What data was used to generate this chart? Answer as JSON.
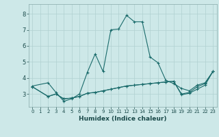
{
  "title": "",
  "xlabel": "Humidex (Indice chaleur)",
  "xlim": [
    -0.5,
    23.5
  ],
  "ylim": [
    2.2,
    8.6
  ],
  "xticks": [
    0,
    1,
    2,
    3,
    4,
    5,
    6,
    7,
    8,
    9,
    10,
    11,
    12,
    13,
    14,
    15,
    16,
    17,
    18,
    19,
    20,
    21,
    22,
    23
  ],
  "yticks": [
    3,
    4,
    5,
    6,
    7,
    8
  ],
  "bg": "#cde8e8",
  "grid_color": "#b0d0d0",
  "line_color": "#1a6b6b",
  "line1_x": [
    0,
    2,
    3,
    4,
    5,
    6,
    7,
    8,
    9,
    10,
    11,
    12,
    13,
    14,
    15,
    16,
    17,
    18,
    19,
    20,
    21,
    22,
    23
  ],
  "line1_y": [
    3.5,
    3.7,
    3.1,
    2.55,
    2.7,
    3.0,
    4.35,
    5.5,
    4.4,
    7.0,
    7.05,
    7.9,
    7.5,
    7.5,
    5.3,
    4.95,
    3.85,
    3.65,
    3.35,
    3.2,
    3.55,
    3.7,
    4.4
  ],
  "line2_x": [
    0,
    2,
    3,
    4,
    5,
    6,
    7,
    8,
    9,
    10,
    11,
    12,
    13,
    14,
    15,
    16,
    17,
    18,
    19,
    20,
    21,
    22,
    23
  ],
  "line2_y": [
    3.45,
    2.85,
    3.0,
    2.7,
    2.75,
    2.85,
    3.05,
    3.1,
    3.2,
    3.3,
    3.4,
    3.5,
    3.55,
    3.6,
    3.65,
    3.7,
    3.75,
    3.8,
    3.0,
    3.1,
    3.45,
    3.65,
    4.4
  ],
  "line3_x": [
    0,
    2,
    3,
    4,
    5,
    6,
    7,
    8,
    9,
    10,
    11,
    12,
    13,
    14,
    15,
    16,
    17,
    18,
    19,
    20,
    21,
    22,
    23
  ],
  "line3_y": [
    3.45,
    2.85,
    3.0,
    2.7,
    2.75,
    2.85,
    3.05,
    3.1,
    3.2,
    3.3,
    3.4,
    3.5,
    3.55,
    3.6,
    3.65,
    3.7,
    3.75,
    3.8,
    2.95,
    3.05,
    3.3,
    3.55,
    4.4
  ]
}
